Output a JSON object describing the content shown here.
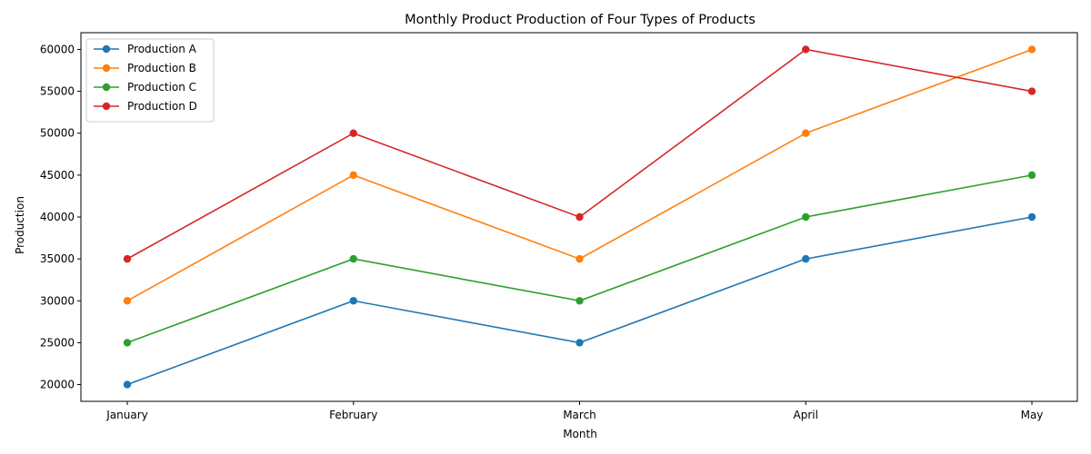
{
  "chart_data": {
    "type": "line",
    "title": "Monthly Product Production of Four Types of Products",
    "xlabel": "Month",
    "ylabel": "Production",
    "categories": [
      "January",
      "February",
      "March",
      "April",
      "May"
    ],
    "ylim": [
      18000,
      62000
    ],
    "yticks": [
      20000,
      25000,
      30000,
      35000,
      40000,
      45000,
      50000,
      55000,
      60000
    ],
    "grid": false,
    "legend_position": "top-left",
    "marker": "circle",
    "series": [
      {
        "name": "Production A",
        "color": "#1f77b4",
        "values": [
          20000,
          30000,
          25000,
          35000,
          40000
        ]
      },
      {
        "name": "Production B",
        "color": "#ff7f0e",
        "values": [
          30000,
          45000,
          35000,
          50000,
          60000
        ]
      },
      {
        "name": "Production C",
        "color": "#2ca02c",
        "values": [
          25000,
          35000,
          30000,
          40000,
          45000
        ]
      },
      {
        "name": "Production D",
        "color": "#d62728",
        "values": [
          35000,
          50000,
          40000,
          60000,
          55000
        ]
      }
    ]
  }
}
